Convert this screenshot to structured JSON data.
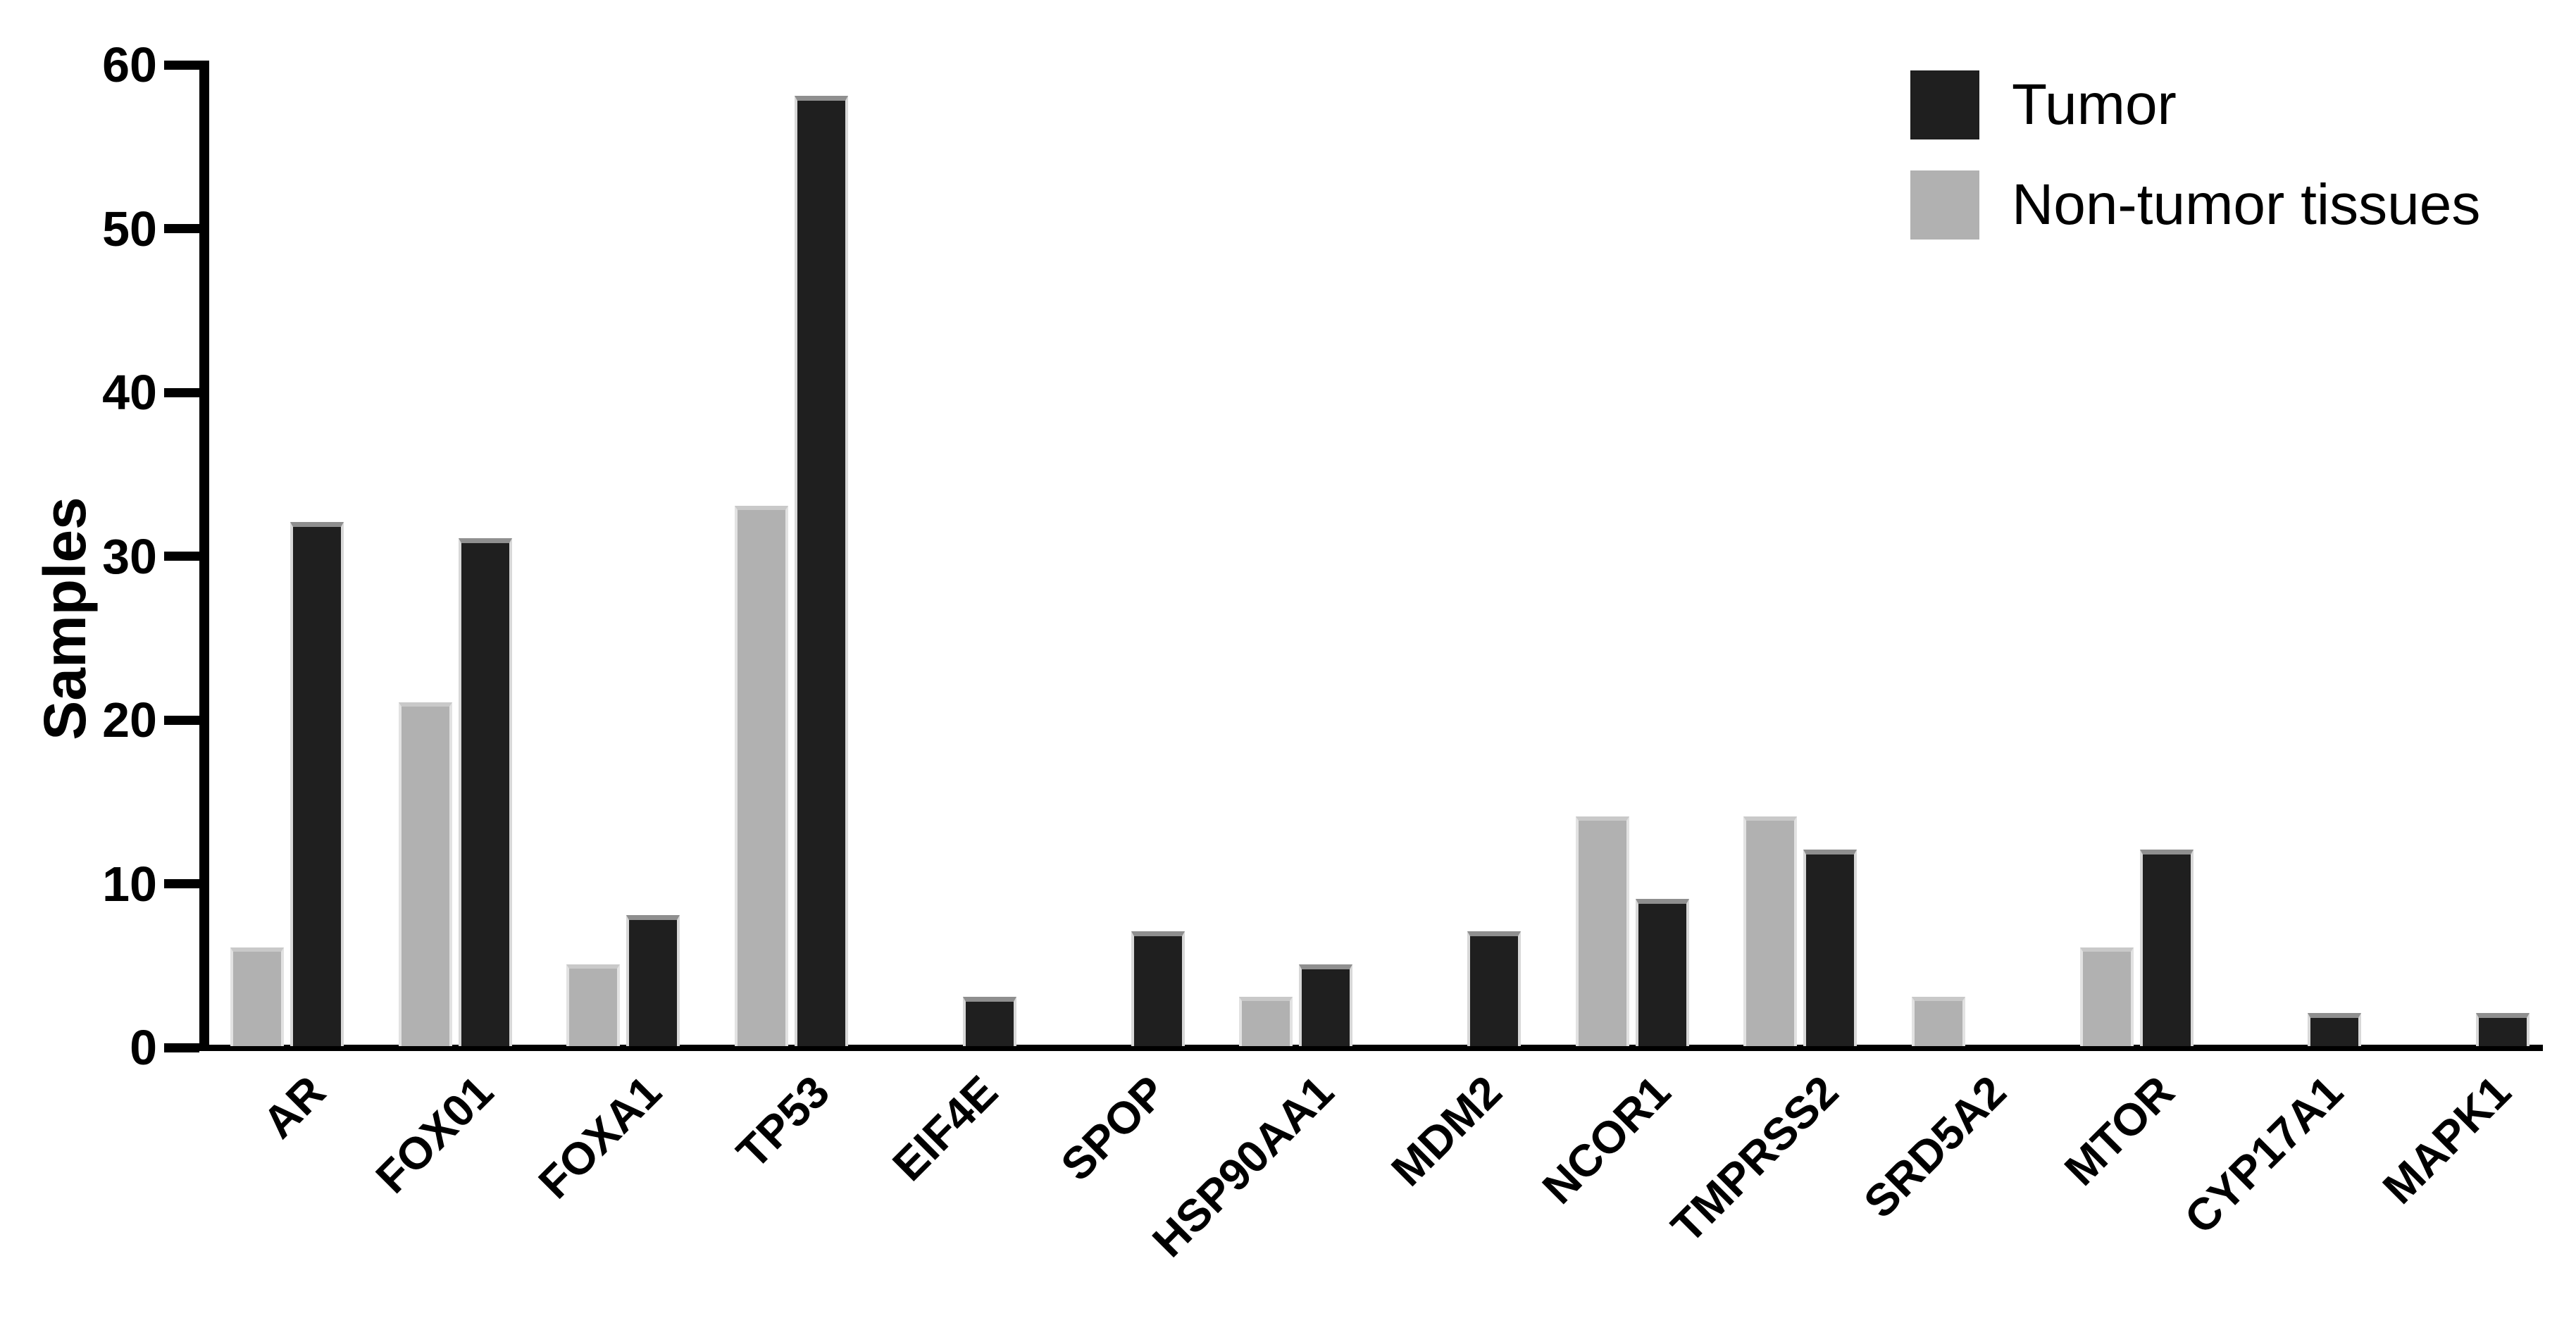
{
  "figure_type": "grouped-bar-chart",
  "colors": {
    "tumor": "#1f1f1f",
    "non_tumor": "#b1b1b1",
    "axis": "#000000",
    "background": "#ffffff"
  },
  "legend": {
    "position": "top-right",
    "items": [
      {
        "label": "Tumor",
        "color": "#1f1f1f"
      },
      {
        "label": "Non-tumor tissues",
        "color": "#b1b1b1"
      }
    ]
  },
  "chart_data": {
    "type": "bar",
    "title": "",
    "xlabel": "",
    "ylabel": "Samples",
    "ylim": [
      0,
      60
    ],
    "yticks": [
      0,
      10,
      20,
      30,
      40,
      50,
      60
    ],
    "grid": false,
    "legend_position": "top-right",
    "bar_order_in_group": [
      "Non-tumor tissues",
      "Tumor"
    ],
    "categories": [
      "AR",
      "FOX01",
      "FOXA1",
      "TP53",
      "EIF4E",
      "SPOP",
      "HSP90AA1",
      "MDM2",
      "NCOR1",
      "TMPRSS2",
      "SRD5A2",
      "MTOR",
      "CYP17A1",
      "MAPK1"
    ],
    "series": [
      {
        "name": "Tumor",
        "color": "#1f1f1f",
        "values": [
          32,
          31,
          8,
          58,
          3,
          7,
          5,
          7,
          9,
          12,
          0,
          12,
          2,
          2
        ]
      },
      {
        "name": "Non-tumor tissues",
        "color": "#b1b1b1",
        "values": [
          6,
          21,
          5,
          33,
          0,
          0,
          3,
          0,
          14,
          14,
          3,
          6,
          0,
          0
        ]
      }
    ]
  }
}
